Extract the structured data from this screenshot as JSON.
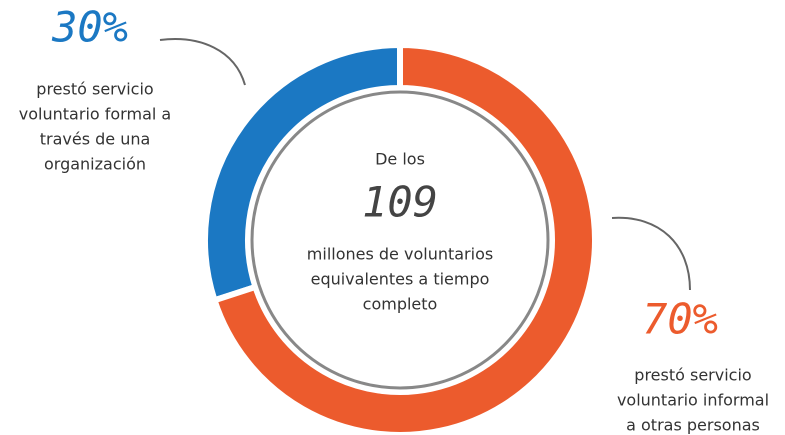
{
  "chart_data": {
    "type": "donut",
    "values": [
      30,
      70
    ],
    "value_labels": [
      "30%",
      "70%"
    ],
    "colors": [
      "#1b78c3",
      "#ec5b2d"
    ],
    "labels": [
      [
        "prestó servicio",
        "voluntario formal a",
        "través de una",
        "organización"
      ],
      [
        "prestó servicio",
        "voluntario informal",
        "a otras personas"
      ]
    ],
    "center": {
      "top": "De los",
      "number": 109,
      "lines": [
        "millones de voluntarios",
        "equivalentes a tiempo",
        "completo"
      ]
    }
  }
}
